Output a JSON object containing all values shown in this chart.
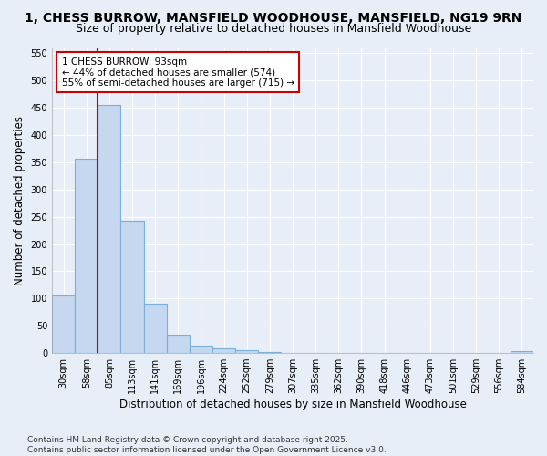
{
  "title": "1, CHESS BURROW, MANSFIELD WOODHOUSE, MANSFIELD, NG19 9RN",
  "subtitle": "Size of property relative to detached houses in Mansfield Woodhouse",
  "xlabel": "Distribution of detached houses by size in Mansfield Woodhouse",
  "ylabel": "Number of detached properties",
  "bar_labels": [
    "30sqm",
    "58sqm",
    "85sqm",
    "113sqm",
    "141sqm",
    "169sqm",
    "196sqm",
    "224sqm",
    "252sqm",
    "279sqm",
    "307sqm",
    "335sqm",
    "362sqm",
    "390sqm",
    "418sqm",
    "446sqm",
    "473sqm",
    "501sqm",
    "529sqm",
    "556sqm",
    "584sqm"
  ],
  "bar_values": [
    105,
    357,
    456,
    243,
    90,
    33,
    14,
    9,
    5,
    2,
    0,
    0,
    0,
    0,
    0,
    0,
    0,
    0,
    0,
    0,
    4
  ],
  "bar_color": "#c5d8f0",
  "bar_edge_color": "#7ab0d8",
  "vline_x": 1.5,
  "vline_color": "#cc0000",
  "annotation_text": "1 CHESS BURROW: 93sqm\n← 44% of detached houses are smaller (574)\n55% of semi-detached houses are larger (715) →",
  "annotation_box_color": "white",
  "annotation_box_edge_color": "#cc0000",
  "ylim": [
    0,
    560
  ],
  "yticks": [
    0,
    50,
    100,
    150,
    200,
    250,
    300,
    350,
    400,
    450,
    500,
    550
  ],
  "background_color": "#e8eef8",
  "grid_color": "#ffffff",
  "footer": "Contains HM Land Registry data © Crown copyright and database right 2025.\nContains public sector information licensed under the Open Government Licence v3.0.",
  "title_fontsize": 10,
  "subtitle_fontsize": 9,
  "xlabel_fontsize": 8.5,
  "ylabel_fontsize": 8.5,
  "tick_fontsize": 7,
  "annot_fontsize": 7.5,
  "footer_fontsize": 6.5
}
